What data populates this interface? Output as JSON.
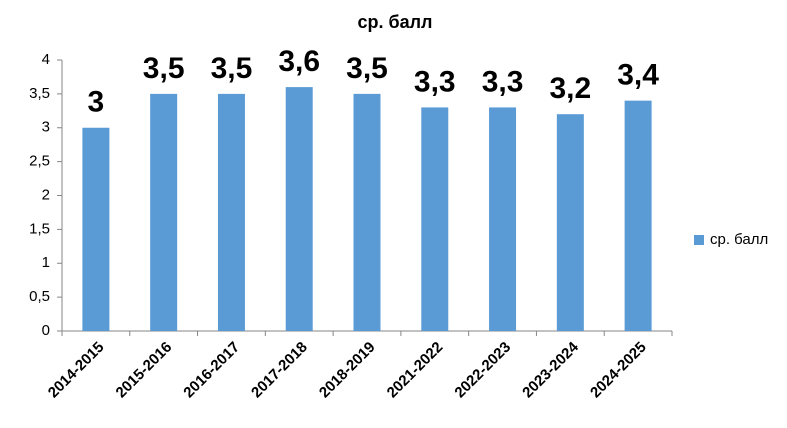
{
  "chart_data": {
    "type": "bar",
    "title": "ср. балл",
    "categories": [
      "2014-2015",
      "2015-2016",
      "2016-2017",
      "2017-2018",
      "2018-2019",
      "2021-2022",
      "2022-2023",
      "2023-2024",
      "2024-2025"
    ],
    "series": [
      {
        "name": "ср. балл",
        "color": "#5b9bd5",
        "values": [
          3,
          3.5,
          3.5,
          3.6,
          3.5,
          3.3,
          3.3,
          3.2,
          3.4
        ],
        "value_labels": [
          "3",
          "3,5",
          "3,5",
          "3,6",
          "3,5",
          "3,3",
          "3,3",
          "3,2",
          "3,4"
        ]
      }
    ],
    "ylim": [
      0,
      4
    ],
    "yticks": [
      0,
      {
        "value": 0.5,
        "label": "0,5"
      },
      1,
      {
        "value": 1.5,
        "label": "1,5"
      },
      2,
      {
        "value": 2.5,
        "label": "2,5"
      },
      3,
      {
        "value": 3.5,
        "label": "3,5"
      },
      4
    ],
    "grid": false,
    "legend": "right"
  }
}
